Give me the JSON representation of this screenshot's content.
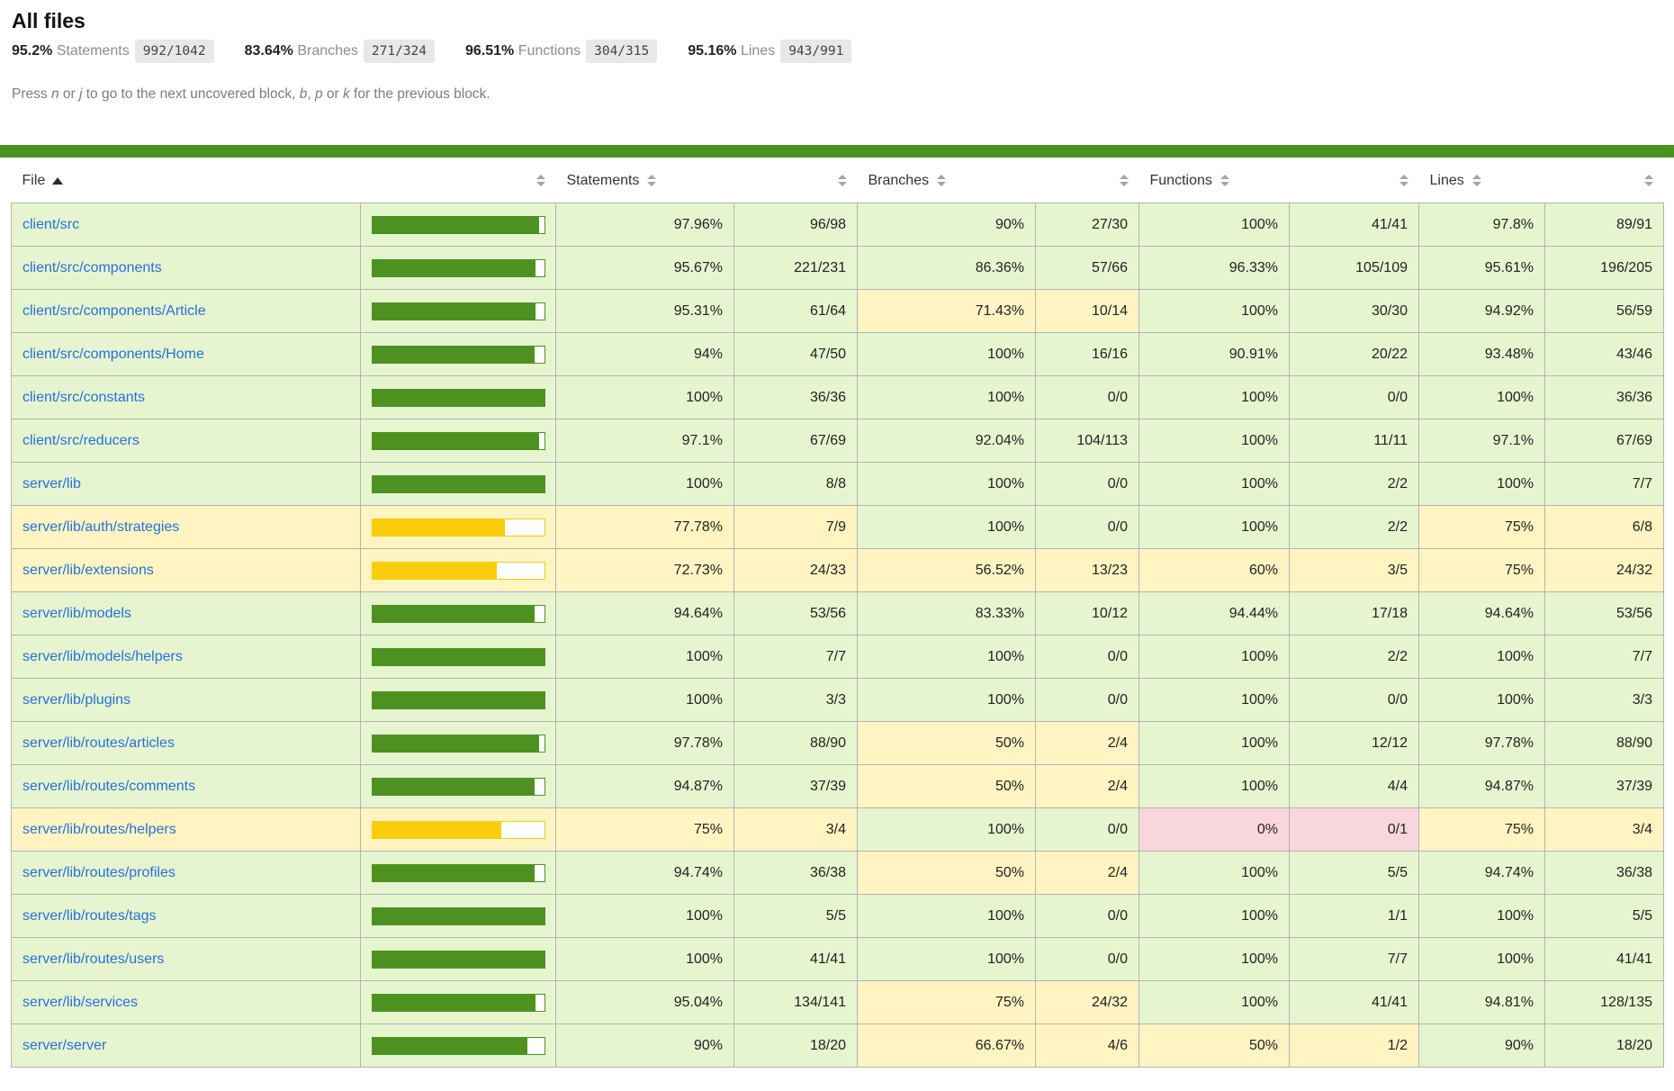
{
  "header": {
    "title": "All files",
    "metrics": [
      {
        "pct": "95.2%",
        "label": "Statements",
        "fraction": "992/1042"
      },
      {
        "pct": "83.64%",
        "label": "Branches",
        "fraction": "271/324"
      },
      {
        "pct": "96.51%",
        "label": "Functions",
        "fraction": "304/315"
      },
      {
        "pct": "95.16%",
        "label": "Lines",
        "fraction": "943/991"
      }
    ]
  },
  "hint": {
    "segments": [
      {
        "text": "Press ",
        "em": false
      },
      {
        "text": "n",
        "em": true
      },
      {
        "text": " or ",
        "em": false
      },
      {
        "text": "j",
        "em": true
      },
      {
        "text": " to go to the next uncovered block, ",
        "em": false
      },
      {
        "text": "b",
        "em": true
      },
      {
        "text": ", ",
        "em": false
      },
      {
        "text": "p",
        "em": true
      },
      {
        "text": " or ",
        "em": false
      },
      {
        "text": "k",
        "em": true
      },
      {
        "text": " for the previous block.",
        "em": false
      }
    ]
  },
  "colors": {
    "high_bg": "#e6f5d0",
    "medium_bg": "#fff4c2",
    "low_bg": "#f9d6de",
    "bar_high": "#4d9221",
    "bar_medium": "#f9cd0b",
    "status_line": "#4d9221",
    "link": "#2571d8",
    "fraction_badge_bg": "#e8e8e8"
  },
  "table": {
    "columns": [
      "File",
      "Statements",
      "Branches",
      "Functions",
      "Lines"
    ],
    "sorted_column": "File",
    "sort_direction": "ascending",
    "rows": [
      {
        "file": "client/src",
        "bar_pct": 97.96,
        "statements": {
          "pct": "97.96%",
          "frac": "96/98",
          "level": "high"
        },
        "branches": {
          "pct": "90%",
          "frac": "27/30",
          "level": "high"
        },
        "functions": {
          "pct": "100%",
          "frac": "41/41",
          "level": "high"
        },
        "lines": {
          "pct": "97.8%",
          "frac": "89/91",
          "level": "high"
        }
      },
      {
        "file": "client/src/components",
        "bar_pct": 95.67,
        "statements": {
          "pct": "95.67%",
          "frac": "221/231",
          "level": "high"
        },
        "branches": {
          "pct": "86.36%",
          "frac": "57/66",
          "level": "high"
        },
        "functions": {
          "pct": "96.33%",
          "frac": "105/109",
          "level": "high"
        },
        "lines": {
          "pct": "95.61%",
          "frac": "196/205",
          "level": "high"
        }
      },
      {
        "file": "client/src/components/Article",
        "bar_pct": 95.31,
        "statements": {
          "pct": "95.31%",
          "frac": "61/64",
          "level": "high"
        },
        "branches": {
          "pct": "71.43%",
          "frac": "10/14",
          "level": "medium"
        },
        "functions": {
          "pct": "100%",
          "frac": "30/30",
          "level": "high"
        },
        "lines": {
          "pct": "94.92%",
          "frac": "56/59",
          "level": "high"
        }
      },
      {
        "file": "client/src/components/Home",
        "bar_pct": 94,
        "statements": {
          "pct": "94%",
          "frac": "47/50",
          "level": "high"
        },
        "branches": {
          "pct": "100%",
          "frac": "16/16",
          "level": "high"
        },
        "functions": {
          "pct": "90.91%",
          "frac": "20/22",
          "level": "high"
        },
        "lines": {
          "pct": "93.48%",
          "frac": "43/46",
          "level": "high"
        }
      },
      {
        "file": "client/src/constants",
        "bar_pct": 100,
        "statements": {
          "pct": "100%",
          "frac": "36/36",
          "level": "high"
        },
        "branches": {
          "pct": "100%",
          "frac": "0/0",
          "level": "high"
        },
        "functions": {
          "pct": "100%",
          "frac": "0/0",
          "level": "high"
        },
        "lines": {
          "pct": "100%",
          "frac": "36/36",
          "level": "high"
        }
      },
      {
        "file": "client/src/reducers",
        "bar_pct": 97.1,
        "statements": {
          "pct": "97.1%",
          "frac": "67/69",
          "level": "high"
        },
        "branches": {
          "pct": "92.04%",
          "frac": "104/113",
          "level": "high"
        },
        "functions": {
          "pct": "100%",
          "frac": "11/11",
          "level": "high"
        },
        "lines": {
          "pct": "97.1%",
          "frac": "67/69",
          "level": "high"
        }
      },
      {
        "file": "server/lib",
        "bar_pct": 100,
        "statements": {
          "pct": "100%",
          "frac": "8/8",
          "level": "high"
        },
        "branches": {
          "pct": "100%",
          "frac": "0/0",
          "level": "high"
        },
        "functions": {
          "pct": "100%",
          "frac": "2/2",
          "level": "high"
        },
        "lines": {
          "pct": "100%",
          "frac": "7/7",
          "level": "high"
        }
      },
      {
        "file": "server/lib/auth/strategies",
        "bar_pct": 77.78,
        "statements": {
          "pct": "77.78%",
          "frac": "7/9",
          "level": "medium"
        },
        "branches": {
          "pct": "100%",
          "frac": "0/0",
          "level": "high"
        },
        "functions": {
          "pct": "100%",
          "frac": "2/2",
          "level": "high"
        },
        "lines": {
          "pct": "75%",
          "frac": "6/8",
          "level": "medium"
        }
      },
      {
        "file": "server/lib/extensions",
        "bar_pct": 72.73,
        "statements": {
          "pct": "72.73%",
          "frac": "24/33",
          "level": "medium"
        },
        "branches": {
          "pct": "56.52%",
          "frac": "13/23",
          "level": "medium"
        },
        "functions": {
          "pct": "60%",
          "frac": "3/5",
          "level": "medium"
        },
        "lines": {
          "pct": "75%",
          "frac": "24/32",
          "level": "medium"
        }
      },
      {
        "file": "server/lib/models",
        "bar_pct": 94.64,
        "statements": {
          "pct": "94.64%",
          "frac": "53/56",
          "level": "high"
        },
        "branches": {
          "pct": "83.33%",
          "frac": "10/12",
          "level": "high"
        },
        "functions": {
          "pct": "94.44%",
          "frac": "17/18",
          "level": "high"
        },
        "lines": {
          "pct": "94.64%",
          "frac": "53/56",
          "level": "high"
        }
      },
      {
        "file": "server/lib/models/helpers",
        "bar_pct": 100,
        "statements": {
          "pct": "100%",
          "frac": "7/7",
          "level": "high"
        },
        "branches": {
          "pct": "100%",
          "frac": "0/0",
          "level": "high"
        },
        "functions": {
          "pct": "100%",
          "frac": "2/2",
          "level": "high"
        },
        "lines": {
          "pct": "100%",
          "frac": "7/7",
          "level": "high"
        }
      },
      {
        "file": "server/lib/plugins",
        "bar_pct": 100,
        "statements": {
          "pct": "100%",
          "frac": "3/3",
          "level": "high"
        },
        "branches": {
          "pct": "100%",
          "frac": "0/0",
          "level": "high"
        },
        "functions": {
          "pct": "100%",
          "frac": "0/0",
          "level": "high"
        },
        "lines": {
          "pct": "100%",
          "frac": "3/3",
          "level": "high"
        }
      },
      {
        "file": "server/lib/routes/articles",
        "bar_pct": 97.78,
        "statements": {
          "pct": "97.78%",
          "frac": "88/90",
          "level": "high"
        },
        "branches": {
          "pct": "50%",
          "frac": "2/4",
          "level": "medium"
        },
        "functions": {
          "pct": "100%",
          "frac": "12/12",
          "level": "high"
        },
        "lines": {
          "pct": "97.78%",
          "frac": "88/90",
          "level": "high"
        }
      },
      {
        "file": "server/lib/routes/comments",
        "bar_pct": 94.87,
        "statements": {
          "pct": "94.87%",
          "frac": "37/39",
          "level": "high"
        },
        "branches": {
          "pct": "50%",
          "frac": "2/4",
          "level": "medium"
        },
        "functions": {
          "pct": "100%",
          "frac": "4/4",
          "level": "high"
        },
        "lines": {
          "pct": "94.87%",
          "frac": "37/39",
          "level": "high"
        }
      },
      {
        "file": "server/lib/routes/helpers",
        "bar_pct": 75,
        "statements": {
          "pct": "75%",
          "frac": "3/4",
          "level": "medium"
        },
        "branches": {
          "pct": "100%",
          "frac": "0/0",
          "level": "high"
        },
        "functions": {
          "pct": "0%",
          "frac": "0/1",
          "level": "low"
        },
        "lines": {
          "pct": "75%",
          "frac": "3/4",
          "level": "medium"
        }
      },
      {
        "file": "server/lib/routes/profiles",
        "bar_pct": 94.74,
        "statements": {
          "pct": "94.74%",
          "frac": "36/38",
          "level": "high"
        },
        "branches": {
          "pct": "50%",
          "frac": "2/4",
          "level": "medium"
        },
        "functions": {
          "pct": "100%",
          "frac": "5/5",
          "level": "high"
        },
        "lines": {
          "pct": "94.74%",
          "frac": "36/38",
          "level": "high"
        }
      },
      {
        "file": "server/lib/routes/tags",
        "bar_pct": 100,
        "statements": {
          "pct": "100%",
          "frac": "5/5",
          "level": "high"
        },
        "branches": {
          "pct": "100%",
          "frac": "0/0",
          "level": "high"
        },
        "functions": {
          "pct": "100%",
          "frac": "1/1",
          "level": "high"
        },
        "lines": {
          "pct": "100%",
          "frac": "5/5",
          "level": "high"
        }
      },
      {
        "file": "server/lib/routes/users",
        "bar_pct": 100,
        "statements": {
          "pct": "100%",
          "frac": "41/41",
          "level": "high"
        },
        "branches": {
          "pct": "100%",
          "frac": "0/0",
          "level": "high"
        },
        "functions": {
          "pct": "100%",
          "frac": "7/7",
          "level": "high"
        },
        "lines": {
          "pct": "100%",
          "frac": "41/41",
          "level": "high"
        }
      },
      {
        "file": "server/lib/services",
        "bar_pct": 95.04,
        "statements": {
          "pct": "95.04%",
          "frac": "134/141",
          "level": "high"
        },
        "branches": {
          "pct": "75%",
          "frac": "24/32",
          "level": "medium"
        },
        "functions": {
          "pct": "100%",
          "frac": "41/41",
          "level": "high"
        },
        "lines": {
          "pct": "94.81%",
          "frac": "128/135",
          "level": "high"
        }
      },
      {
        "file": "server/server",
        "bar_pct": 90,
        "statements": {
          "pct": "90%",
          "frac": "18/20",
          "level": "high"
        },
        "branches": {
          "pct": "66.67%",
          "frac": "4/6",
          "level": "medium"
        },
        "functions": {
          "pct": "50%",
          "frac": "1/2",
          "level": "medium"
        },
        "lines": {
          "pct": "90%",
          "frac": "18/20",
          "level": "high"
        }
      }
    ]
  }
}
